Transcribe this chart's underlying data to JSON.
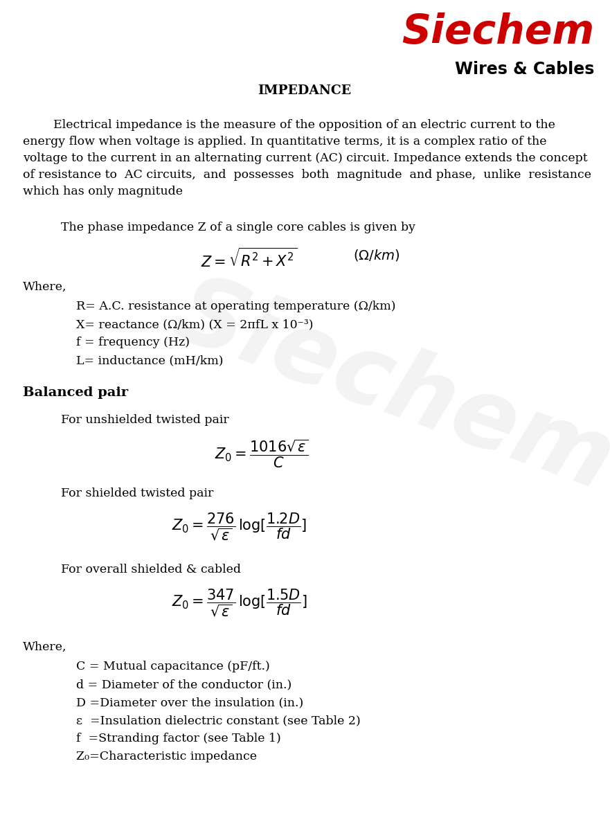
{
  "title": "IMPEDANCE",
  "logo_text": "Siechem",
  "logo_sub": "Wires & Cables",
  "bg_color": "#ffffff",
  "text_color": "#000000",
  "logo_color": "#cc0000",
  "para1_lines": [
    "        Electrical impedance is the measure of the opposition of an electric current to the",
    "energy flow when voltage is applied. In quantitative terms, it is a complex ratio of the",
    "voltage to the current in an alternating current (AC) circuit. Impedance extends the concept",
    "of resistance to  AC circuits,  and  possesses  both  magnitude  and phase,  unlike  resistance",
    "which has only magnitude"
  ],
  "single_core_intro": "The phase impedance Z of a single core cables is given by",
  "where1": "Where,",
  "r_def": "R= A.C. resistance at operating temperature (Ω/km)",
  "x_def": "X= reactance (Ω/km) (X = 2πfL x 10⁻³)",
  "f_def": "f = frequency (Hz)",
  "l_def": "L= inductance (mH/km)",
  "balanced_pair": "Balanced pair",
  "unshielded_intro": "For unshielded twisted pair",
  "shielded_intro": "For shielded twisted pair",
  "overall_intro": "For overall shielded & cabled",
  "where2": "Where,",
  "c_def": "C = Mutual capacitance (pF/ft.)",
  "d_def": "d = Diameter of the conductor (in.)",
  "D_def": "D =Diameter over the insulation (in.)",
  "eps_def": "ε  =Insulation dielectric constant (see Table 2)",
  "f2_def": "f  =Stranding factor (see Table 1)",
  "z0_def": "Z₀=Characteristic impedance",
  "watermark": "Siechem",
  "font_size_body": 12.5,
  "font_size_title": 13.5,
  "font_size_heading": 14,
  "font_size_formula": 15,
  "font_size_logo": 42,
  "font_size_logo_sub": 17
}
